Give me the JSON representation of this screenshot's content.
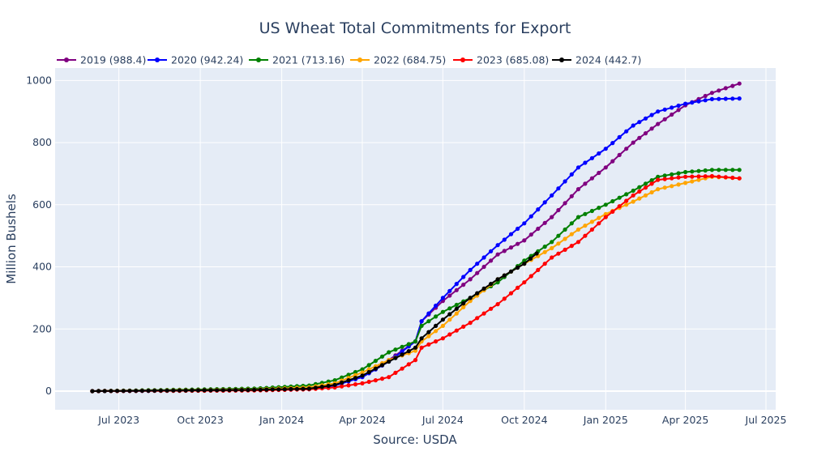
{
  "chart_data": {
    "type": "line",
    "title": "US Wheat Total Commitments for Export",
    "xlabel": "Source: USDA",
    "ylabel": "Million Bushels",
    "xlim": [
      "2023-04-20",
      "2025-07-12"
    ],
    "ylim": [
      -60,
      1040
    ],
    "x_ticks": [
      {
        "date": "2023-07-01",
        "label": "Jul 2023"
      },
      {
        "date": "2023-10-01",
        "label": "Oct 2023"
      },
      {
        "date": "2024-01-01",
        "label": "Jan 2024"
      },
      {
        "date": "2024-04-01",
        "label": "Apr 2024"
      },
      {
        "date": "2024-07-01",
        "label": "Jul 2024"
      },
      {
        "date": "2024-10-01",
        "label": "Oct 2024"
      },
      {
        "date": "2025-01-01",
        "label": "Jan 2025"
      },
      {
        "date": "2025-04-01",
        "label": "Apr 2025"
      },
      {
        "date": "2025-07-01",
        "label": "Jul 2025"
      }
    ],
    "y_ticks": [
      0,
      200,
      400,
      600,
      800,
      1000
    ],
    "grid": true,
    "legend_position": "top-left",
    "series": [
      {
        "name": "2019 (988.4)",
        "color": "#800080",
        "points": [
          [
            "2023-06-01",
            0
          ],
          [
            "2023-12-01",
            4
          ],
          [
            "2024-02-01",
            8
          ],
          [
            "2024-03-01",
            20
          ],
          [
            "2024-04-01",
            45
          ],
          [
            "2024-05-01",
            100
          ],
          [
            "2024-05-31",
            160
          ],
          [
            "2024-06-07",
            225
          ],
          [
            "2024-07-01",
            290
          ],
          [
            "2024-08-01",
            360
          ],
          [
            "2024-09-01",
            440
          ],
          [
            "2024-10-01",
            485
          ],
          [
            "2024-11-01",
            560
          ],
          [
            "2024-12-01",
            650
          ],
          [
            "2025-01-01",
            720
          ],
          [
            "2025-02-01",
            800
          ],
          [
            "2025-03-01",
            860
          ],
          [
            "2025-04-01",
            920
          ],
          [
            "2025-05-01",
            960
          ],
          [
            "2025-06-01",
            990
          ]
        ]
      },
      {
        "name": "2020 (942.24)",
        "color": "#0000ff",
        "points": [
          [
            "2023-06-01",
            0
          ],
          [
            "2023-12-01",
            3
          ],
          [
            "2024-02-01",
            6
          ],
          [
            "2024-03-01",
            18
          ],
          [
            "2024-04-01",
            45
          ],
          [
            "2024-05-01",
            95
          ],
          [
            "2024-05-31",
            160
          ],
          [
            "2024-06-07",
            225
          ],
          [
            "2024-07-01",
            300
          ],
          [
            "2024-08-01",
            390
          ],
          [
            "2024-09-01",
            470
          ],
          [
            "2024-10-01",
            540
          ],
          [
            "2024-11-01",
            630
          ],
          [
            "2024-12-01",
            720
          ],
          [
            "2025-01-01",
            780
          ],
          [
            "2025-02-01",
            855
          ],
          [
            "2025-03-01",
            900
          ],
          [
            "2025-04-01",
            925
          ],
          [
            "2025-05-01",
            940
          ],
          [
            "2025-06-01",
            942
          ]
        ]
      },
      {
        "name": "2021 (713.16)",
        "color": "#008000",
        "points": [
          [
            "2023-06-01",
            0
          ],
          [
            "2023-12-01",
            8
          ],
          [
            "2024-02-01",
            18
          ],
          [
            "2024-03-01",
            35
          ],
          [
            "2024-04-01",
            70
          ],
          [
            "2024-05-01",
            125
          ],
          [
            "2024-05-31",
            160
          ],
          [
            "2024-06-07",
            210
          ],
          [
            "2024-07-01",
            255
          ],
          [
            "2024-08-01",
            300
          ],
          [
            "2024-09-01",
            350
          ],
          [
            "2024-10-01",
            420
          ],
          [
            "2024-11-01",
            480
          ],
          [
            "2024-12-01",
            560
          ],
          [
            "2025-01-01",
            600
          ],
          [
            "2025-02-01",
            645
          ],
          [
            "2025-03-01",
            690
          ],
          [
            "2025-04-01",
            705
          ],
          [
            "2025-05-01",
            712
          ],
          [
            "2025-06-01",
            712
          ]
        ]
      },
      {
        "name": "2022 (684.75)",
        "color": "#ffa500",
        "points": [
          [
            "2023-06-01",
            0
          ],
          [
            "2023-12-01",
            5
          ],
          [
            "2024-02-01",
            12
          ],
          [
            "2024-03-01",
            25
          ],
          [
            "2024-04-01",
            60
          ],
          [
            "2024-05-01",
            100
          ],
          [
            "2024-05-31",
            130
          ],
          [
            "2024-06-07",
            160
          ],
          [
            "2024-07-01",
            210
          ],
          [
            "2024-08-01",
            290
          ],
          [
            "2024-09-01",
            360
          ],
          [
            "2024-10-01",
            410
          ],
          [
            "2024-11-01",
            460
          ],
          [
            "2024-12-01",
            520
          ],
          [
            "2025-01-01",
            570
          ],
          [
            "2025-02-01",
            610
          ],
          [
            "2025-03-01",
            650
          ],
          [
            "2025-04-01",
            670
          ],
          [
            "2025-05-01",
            690
          ],
          [
            "2025-06-01",
            685
          ]
        ]
      },
      {
        "name": "2023 (685.08)",
        "color": "#ff0000",
        "points": [
          [
            "2023-06-01",
            0
          ],
          [
            "2023-12-01",
            2
          ],
          [
            "2024-02-01",
            6
          ],
          [
            "2024-03-01",
            12
          ],
          [
            "2024-04-01",
            25
          ],
          [
            "2024-05-01",
            45
          ],
          [
            "2024-05-31",
            100
          ],
          [
            "2024-06-07",
            140
          ],
          [
            "2024-07-01",
            170
          ],
          [
            "2024-08-01",
            220
          ],
          [
            "2024-09-01",
            280
          ],
          [
            "2024-10-01",
            350
          ],
          [
            "2024-11-01",
            430
          ],
          [
            "2024-12-01",
            480
          ],
          [
            "2025-01-01",
            560
          ],
          [
            "2025-02-01",
            630
          ],
          [
            "2025-03-01",
            680
          ],
          [
            "2025-04-01",
            690
          ],
          [
            "2025-05-01",
            692
          ],
          [
            "2025-06-01",
            685
          ]
        ]
      },
      {
        "name": "2024 (442.7)",
        "color": "#000000",
        "points": [
          [
            "2023-06-01",
            0
          ],
          [
            "2023-12-01",
            4
          ],
          [
            "2024-02-01",
            8
          ],
          [
            "2024-03-01",
            20
          ],
          [
            "2024-04-01",
            50
          ],
          [
            "2024-05-01",
            95
          ],
          [
            "2024-05-31",
            140
          ],
          [
            "2024-06-07",
            170
          ],
          [
            "2024-07-01",
            230
          ],
          [
            "2024-08-01",
            300
          ],
          [
            "2024-09-01",
            360
          ],
          [
            "2024-10-01",
            410
          ],
          [
            "2024-10-15",
            443
          ]
        ]
      }
    ]
  }
}
